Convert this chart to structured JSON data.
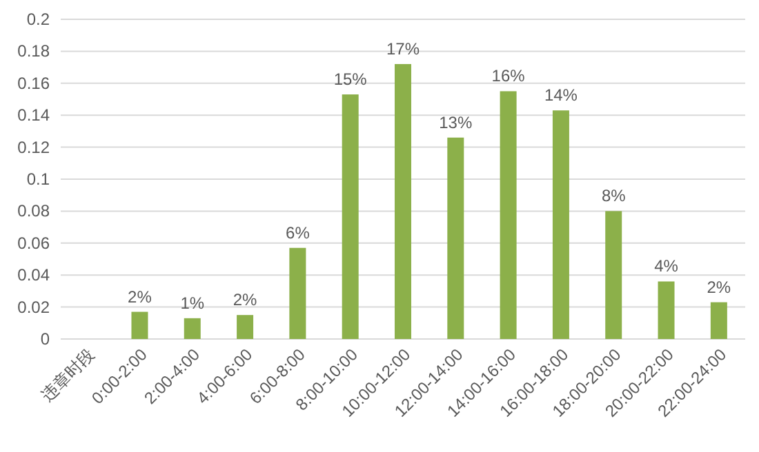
{
  "chart_data": {
    "type": "bar",
    "categories": [
      "违章时段",
      "0:00-2:00",
      "2:00-4:00",
      "4:00-6:00",
      "6:00-8:00",
      "8:00-10:00",
      "10:00-12:00",
      "12:00-14:00",
      "14:00-16:00",
      "16:00-18:00",
      "18:00-20:00",
      "20:00-22:00",
      "22:00-24:00"
    ],
    "values": [
      null,
      0.017,
      0.013,
      0.015,
      0.057,
      0.153,
      0.172,
      0.126,
      0.155,
      0.143,
      0.08,
      0.036,
      0.023
    ],
    "value_labels": [
      null,
      "2%",
      "1%",
      "2%",
      "6%",
      "15%",
      "17%",
      "13%",
      "16%",
      "14%",
      "8%",
      "4%",
      "2%"
    ],
    "color": "#8cb04a",
    "ylim": [
      0,
      0.2
    ],
    "yticks": [
      0,
      0.02,
      0.04,
      0.06,
      0.08,
      0.1,
      0.12,
      0.14,
      0.16,
      0.18,
      0.2
    ],
    "grid": "y"
  }
}
